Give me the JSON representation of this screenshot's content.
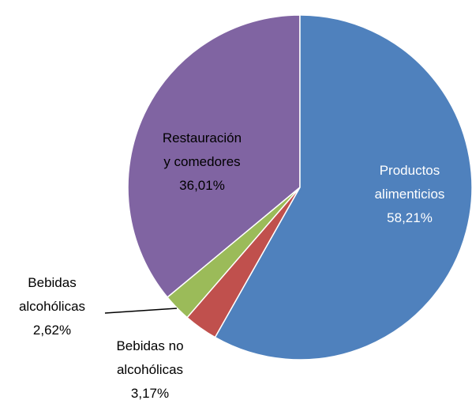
{
  "chart_data": {
    "type": "pie",
    "categories": [
      "Productos alimenticios",
      "Bebidas no alcohólicas",
      "Bebidas alcohólicas",
      "Restauración y comedores"
    ],
    "values": [
      58.21,
      3.17,
      2.62,
      36.01
    ],
    "value_labels": [
      "58,21%",
      "3,17%",
      "2,62%",
      "36,01%"
    ],
    "colors": [
      "#4f81bd",
      "#c0504d",
      "#9bbb59",
      "#8064a2"
    ]
  }
}
